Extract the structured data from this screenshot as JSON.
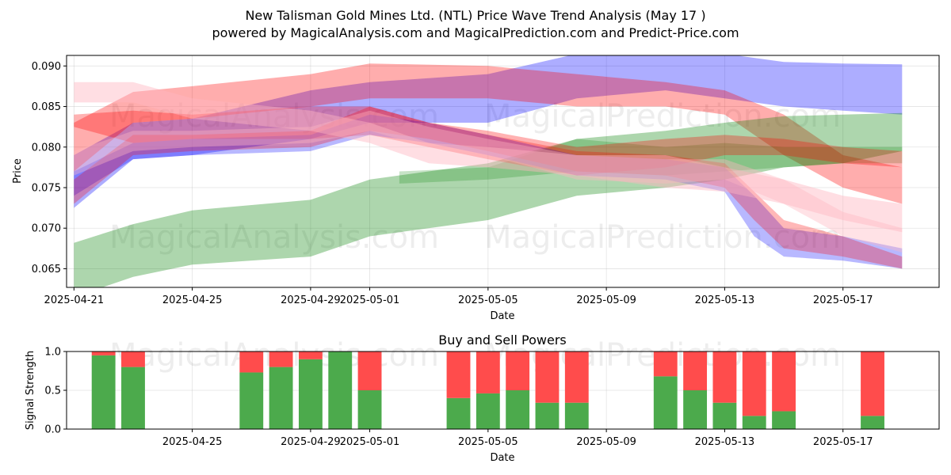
{
  "chart_data": [
    {
      "type": "area",
      "title": "New Talisman Gold Mines Ltd. (NTL) Price Wave Trend Analysis (May 17 )",
      "subtitle": "powered by MagicalAnalysis.com and MagicalPrediction.com and Predict-Price.com",
      "xlabel": "Date",
      "ylabel": "Price",
      "xlim": [
        "2025-04-20T18:00",
        "2025-05-20T06:00"
      ],
      "ylim": [
        0.0627,
        0.0913
      ],
      "x_ticks": [
        "2025-04-21",
        "2025-04-25",
        "2025-04-29",
        "2025-05-01",
        "2025-05-05",
        "2025-05-09",
        "2025-05-13",
        "2025-05-17"
      ],
      "y_ticks": [
        0.065,
        0.07,
        0.075,
        0.08,
        0.085,
        0.09
      ],
      "y_tick_labels": [
        "0.065",
        "0.070",
        "0.075",
        "0.080",
        "0.085",
        "0.090"
      ],
      "grid": true,
      "watermarks": [
        "MagicalAnalysis.com",
        "MagicalPrediction.com"
      ],
      "colors": {
        "red": "#ff0000",
        "blue": "#0000ff",
        "green": "#008000",
        "pink": "#ffb6c1"
      },
      "bands": [
        {
          "color": "blue",
          "opacity": 0.32,
          "points": [
            [
              "2025-04-21",
              0.0725,
              0.079
            ],
            [
              "2025-04-23",
              0.0785,
              0.083
            ],
            [
              "2025-04-25",
              0.079,
              0.0835
            ],
            [
              "2025-04-29",
              0.081,
              0.087
            ],
            [
              "2025-05-01",
              0.083,
              0.088
            ],
            [
              "2025-05-05",
              0.083,
              0.089
            ],
            [
              "2025-05-08",
              0.086,
              0.0915
            ],
            [
              "2025-05-11",
              0.087,
              0.0918
            ],
            [
              "2025-05-13",
              0.086,
              0.0915
            ],
            [
              "2025-05-15",
              0.085,
              0.0905
            ],
            [
              "2025-05-17",
              0.0845,
              0.0903
            ],
            [
              "2025-05-19",
              0.084,
              0.0902
            ]
          ]
        },
        {
          "color": "red",
          "opacity": 0.32,
          "points": [
            [
              "2025-04-21",
              0.077,
              0.083
            ],
            [
              "2025-04-23",
              0.083,
              0.0868
            ],
            [
              "2025-04-25",
              0.0835,
              0.0875
            ],
            [
              "2025-04-29",
              0.085,
              0.089
            ],
            [
              "2025-05-01",
              0.086,
              0.0903
            ],
            [
              "2025-05-05",
              0.086,
              0.09
            ],
            [
              "2025-05-08",
              0.085,
              0.089
            ],
            [
              "2025-05-11",
              0.085,
              0.088
            ],
            [
              "2025-05-13",
              0.084,
              0.087
            ],
            [
              "2025-05-15",
              0.079,
              0.084
            ],
            [
              "2025-05-17",
              0.075,
              0.079
            ],
            [
              "2025-05-19",
              0.073,
              0.0775
            ]
          ]
        },
        {
          "color": "green",
          "opacity": 0.32,
          "points": [
            [
              "2025-04-21",
              0.0615,
              0.0682
            ],
            [
              "2025-04-23",
              0.064,
              0.0705
            ],
            [
              "2025-04-25",
              0.0655,
              0.0722
            ],
            [
              "2025-04-29",
              0.0665,
              0.0735
            ],
            [
              "2025-05-01",
              0.069,
              0.076
            ],
            [
              "2025-05-05",
              0.071,
              0.078
            ],
            [
              "2025-05-08",
              0.074,
              0.081
            ],
            [
              "2025-05-11",
              0.075,
              0.082
            ],
            [
              "2025-05-13",
              0.076,
              0.083
            ],
            [
              "2025-05-15",
              0.0775,
              0.0838
            ],
            [
              "2025-05-17",
              0.078,
              0.084
            ],
            [
              "2025-05-19",
              0.0795,
              0.0842
            ]
          ]
        },
        {
          "color": "green",
          "opacity": 0.22,
          "points": [
            [
              "2025-05-02",
              0.0755,
              0.077
            ],
            [
              "2025-05-05",
              0.076,
              0.0775
            ],
            [
              "2025-05-08",
              0.077,
              0.081
            ],
            [
              "2025-05-11",
              0.0765,
              0.08
            ],
            [
              "2025-05-13",
              0.077,
              0.0805
            ],
            [
              "2025-05-15",
              0.0775,
              0.08
            ],
            [
              "2025-05-17",
              0.078,
              0.08
            ],
            [
              "2025-05-19",
              0.078,
              0.08
            ]
          ]
        },
        {
          "color": "red",
          "opacity": 0.3,
          "points": [
            [
              "2025-04-21",
              0.0825,
              0.084
            ],
            [
              "2025-04-23",
              0.0805,
              0.0845
            ],
            [
              "2025-04-25",
              0.081,
              0.084
            ],
            [
              "2025-04-29",
              0.081,
              0.085
            ],
            [
              "2025-05-01",
              0.0815,
              0.085
            ],
            [
              "2025-05-03",
              0.08,
              0.083
            ],
            [
              "2025-05-05",
              0.0785,
              0.082
            ],
            [
              "2025-05-08",
              0.0765,
              0.08
            ],
            [
              "2025-05-11",
              0.0775,
              0.081
            ],
            [
              "2025-05-13",
              0.079,
              0.0815
            ],
            [
              "2025-05-15",
              0.079,
              0.081
            ],
            [
              "2025-05-17",
              0.078,
              0.08
            ],
            [
              "2025-05-19",
              0.0775,
              0.0795
            ]
          ]
        },
        {
          "color": "blue",
          "opacity": 0.28,
          "points": [
            [
              "2025-04-21",
              0.074,
              0.077
            ],
            [
              "2025-04-23",
              0.0785,
              0.0805
            ],
            [
              "2025-04-25",
              0.079,
              0.081
            ],
            [
              "2025-04-29",
              0.0795,
              0.0815
            ],
            [
              "2025-05-01",
              0.0815,
              0.084
            ],
            [
              "2025-05-03",
              0.0805,
              0.083
            ],
            [
              "2025-05-05",
              0.079,
              0.0815
            ],
            [
              "2025-05-08",
              0.0765,
              0.079
            ],
            [
              "2025-05-11",
              0.076,
              0.0785
            ],
            [
              "2025-05-13",
              0.0745,
              0.0775
            ],
            [
              "2025-05-14",
              0.069,
              0.074
            ],
            [
              "2025-05-15",
              0.0665,
              0.07
            ],
            [
              "2025-05-17",
              0.066,
              0.069
            ],
            [
              "2025-05-19",
              0.065,
              0.0675
            ]
          ]
        },
        {
          "color": "red",
          "opacity": 0.28,
          "points": [
            [
              "2025-04-21",
              0.073,
              0.076
            ],
            [
              "2025-04-23",
              0.079,
              0.0815
            ],
            [
              "2025-04-25",
              0.0795,
              0.0815
            ],
            [
              "2025-04-29",
              0.08,
              0.082
            ],
            [
              "2025-05-01",
              0.082,
              0.085
            ],
            [
              "2025-05-03",
              0.081,
              0.083
            ],
            [
              "2025-05-05",
              0.0795,
              0.0815
            ],
            [
              "2025-05-08",
              0.077,
              0.0795
            ],
            [
              "2025-05-11",
              0.0765,
              0.079
            ],
            [
              "2025-05-13",
              0.075,
              0.078
            ],
            [
              "2025-05-14",
              0.071,
              0.0745
            ],
            [
              "2025-05-15",
              0.0675,
              0.071
            ],
            [
              "2025-05-17",
              0.0665,
              0.069
            ],
            [
              "2025-05-19",
              0.065,
              0.0665
            ]
          ]
        },
        {
          "color": "pink",
          "opacity": 0.45,
          "points": [
            [
              "2025-04-21",
              0.0855,
              0.088
            ],
            [
              "2025-04-23",
              0.0855,
              0.088
            ],
            [
              "2025-04-25",
              0.0835,
              0.086
            ],
            [
              "2025-04-29",
              0.082,
              0.0845
            ],
            [
              "2025-05-01",
              0.0805,
              0.083
            ],
            [
              "2025-05-03",
              0.078,
              0.0805
            ],
            [
              "2025-05-05",
              0.0775,
              0.08
            ],
            [
              "2025-05-08",
              0.0765,
              0.079
            ],
            [
              "2025-05-11",
              0.075,
              0.079
            ],
            [
              "2025-05-13",
              0.0745,
              0.0775
            ],
            [
              "2025-05-15",
              0.073,
              0.076
            ],
            [
              "2025-05-17",
              0.071,
              0.074
            ],
            [
              "2025-05-19",
              0.0695,
              0.073
            ]
          ]
        },
        {
          "color": "pink",
          "opacity": 0.4,
          "points": [
            [
              "2025-04-21",
              0.0765,
              0.0795
            ],
            [
              "2025-04-23",
              0.0795,
              0.082
            ],
            [
              "2025-04-25",
              0.08,
              0.082
            ],
            [
              "2025-04-29",
              0.0805,
              0.0825
            ],
            [
              "2025-05-01",
              0.082,
              0.0845
            ],
            [
              "2025-05-03",
              0.08,
              0.0825
            ],
            [
              "2025-05-05",
              0.079,
              0.081
            ],
            [
              "2025-05-08",
              0.076,
              0.079
            ],
            [
              "2025-05-11",
              0.0755,
              0.0785
            ],
            [
              "2025-05-13",
              0.076,
              0.0785
            ],
            [
              "2025-05-15",
              0.073,
              0.076
            ],
            [
              "2025-05-17",
              0.069,
              0.072
            ],
            [
              "2025-05-19",
              0.067,
              0.07
            ]
          ]
        }
      ]
    },
    {
      "type": "bar",
      "title": "Buy and Sell Powers",
      "xlabel": "Date",
      "ylabel": "Signal Strength",
      "ylim": [
        0,
        1
      ],
      "y_ticks": [
        0.0,
        0.5,
        1.0
      ],
      "y_tick_labels": [
        "0.0",
        "0.5",
        "1.0"
      ],
      "x_ticks": [
        "2025-04-25",
        "2025-04-29",
        "2025-05-01",
        "2025-05-05",
        "2025-05-09",
        "2025-05-13",
        "2025-05-17"
      ],
      "xlim": [
        "2025-04-20T18:00",
        "2025-05-20T06:00"
      ],
      "grid": true,
      "colors": {
        "buy": "#4caa4c",
        "sell": "#ff4c4c"
      },
      "series": [
        {
          "name": "Buy",
          "values": [
            0.95,
            0.8,
            0.73,
            0.8,
            0.9,
            1.0,
            0.5,
            0.4,
            0.46,
            0.5,
            0.34,
            0.34,
            0.68,
            0.5,
            0.34,
            0.17,
            0.23,
            0.17
          ]
        },
        {
          "name": "Sell",
          "values": [
            0.05,
            0.2,
            0.27,
            0.2,
            0.1,
            0.0,
            0.5,
            0.6,
            0.54,
            0.5,
            0.66,
            0.66,
            0.32,
            0.5,
            0.66,
            0.83,
            0.77,
            0.83
          ]
        }
      ],
      "categories": [
        "2025-04-22",
        "2025-04-23",
        "2025-04-27",
        "2025-04-28",
        "2025-04-29",
        "2025-04-30",
        "2025-05-01",
        "2025-05-04",
        "2025-05-05",
        "2025-05-06",
        "2025-05-07",
        "2025-05-08",
        "2025-05-11",
        "2025-05-12",
        "2025-05-13",
        "2025-05-14",
        "2025-05-15",
        "2025-05-18"
      ]
    }
  ]
}
